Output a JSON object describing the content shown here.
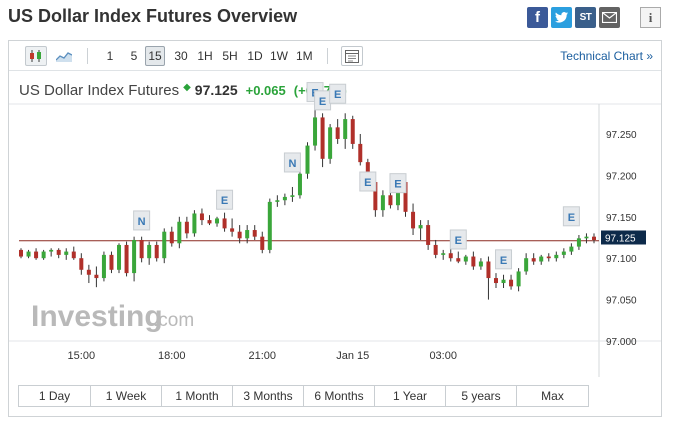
{
  "page": {
    "title": "US Dollar Index Futures Overview"
  },
  "share": {
    "facebook_icon": "f",
    "twitter_icon": "t",
    "stocktwits_icon": "ST",
    "mail_icon": "mail",
    "info_icon": "i"
  },
  "toolbar": {
    "chart_types": [
      "candlestick-icon",
      "area-chart-icon"
    ],
    "intervals": [
      "1",
      "5",
      "15",
      "30",
      "1H",
      "5H",
      "1D",
      "1W",
      "1M"
    ],
    "active_interval": "15",
    "settings_icon": "chart-settings-icon",
    "technical_link": "Technical Chart »"
  },
  "quote": {
    "name": "US Dollar Index Futures",
    "price": "97.125",
    "change": "+0.065",
    "change_pct": "(+0.07%)",
    "up_color": "#2aa33a"
  },
  "chart_data": {
    "type": "candlestick",
    "x_tick_labels": [
      "15:00",
      "18:00",
      "21:00",
      "Jan 15",
      "03:00"
    ],
    "y_tick_labels": [
      "97.250",
      "97.200",
      "97.150",
      "97.100",
      "97.050",
      "97.000"
    ],
    "ylim": [
      97.0,
      97.285
    ],
    "last_price_label": "97.125",
    "reference_line_value": 97.121,
    "colors": {
      "up": "#3aa63a",
      "down": "#b0302a",
      "reference": "#8b2a20",
      "last_price": "#0d2a4a"
    },
    "candles": [
      [
        97.11,
        97.112,
        97.1,
        97.102
      ],
      [
        97.102,
        97.11,
        97.1,
        97.108
      ],
      [
        97.108,
        97.112,
        97.098,
        97.1
      ],
      [
        97.1,
        97.11,
        97.098,
        97.108
      ],
      [
        97.108,
        97.112,
        97.102,
        97.11
      ],
      [
        97.11,
        97.112,
        97.1,
        97.104
      ],
      [
        97.104,
        97.112,
        97.098,
        97.108
      ],
      [
        97.108,
        97.114,
        97.098,
        97.1
      ],
      [
        97.1,
        97.106,
        97.08,
        97.086
      ],
      [
        97.086,
        97.092,
        97.07,
        97.08
      ],
      [
        97.08,
        97.09,
        97.065,
        97.076
      ],
      [
        97.076,
        97.108,
        97.072,
        97.104
      ],
      [
        97.104,
        97.108,
        97.082,
        97.086
      ],
      [
        97.086,
        97.118,
        97.082,
        97.116
      ],
      [
        97.116,
        97.12,
        97.078,
        97.082
      ],
      [
        97.082,
        97.126,
        97.072,
        97.122
      ],
      [
        97.122,
        97.126,
        97.095,
        97.1
      ],
      [
        97.1,
        97.12,
        97.092,
        97.116
      ],
      [
        97.116,
        97.12,
        97.096,
        97.1
      ],
      [
        97.1,
        97.136,
        97.094,
        97.132
      ],
      [
        97.132,
        97.138,
        97.114,
        97.118
      ],
      [
        97.118,
        97.15,
        97.112,
        97.144
      ],
      [
        97.144,
        97.15,
        97.124,
        97.13
      ],
      [
        97.13,
        97.158,
        97.126,
        97.154
      ],
      [
        97.154,
        97.16,
        97.14,
        97.146
      ],
      [
        97.146,
        97.152,
        97.14,
        97.142
      ],
      [
        97.142,
        97.15,
        97.138,
        97.148
      ],
      [
        97.148,
        97.155,
        97.132,
        97.136
      ],
      [
        97.136,
        97.148,
        97.126,
        97.132
      ],
      [
        97.132,
        97.14,
        97.118,
        97.124
      ],
      [
        97.124,
        97.14,
        97.118,
        97.134
      ],
      [
        97.134,
        97.14,
        97.122,
        97.126
      ],
      [
        97.126,
        97.132,
        97.106,
        97.11
      ],
      [
        97.11,
        97.172,
        97.106,
        97.168
      ],
      [
        97.168,
        97.176,
        97.162,
        97.17
      ],
      [
        97.17,
        97.178,
        97.164,
        97.174
      ],
      [
        97.174,
        97.186,
        97.168,
        97.176
      ],
      [
        97.176,
        97.206,
        97.172,
        97.202
      ],
      [
        97.202,
        97.24,
        97.196,
        97.236
      ],
      [
        97.236,
        97.28,
        97.23,
        97.27
      ],
      [
        97.27,
        97.275,
        97.21,
        97.22
      ],
      [
        97.22,
        97.262,
        97.214,
        97.258
      ],
      [
        97.258,
        97.268,
        97.238,
        97.244
      ],
      [
        97.244,
        97.275,
        97.232,
        97.268
      ],
      [
        97.268,
        97.272,
        97.232,
        97.238
      ],
      [
        97.238,
        97.25,
        97.212,
        97.216
      ],
      [
        97.216,
        97.22,
        97.188,
        97.192
      ],
      [
        97.192,
        97.2,
        97.15,
        97.158
      ],
      [
        97.158,
        97.182,
        97.15,
        97.176
      ],
      [
        97.176,
        97.18,
        97.16,
        97.164
      ],
      [
        97.164,
        97.196,
        97.158,
        97.192
      ],
      [
        97.192,
        97.196,
        97.15,
        97.156
      ],
      [
        97.156,
        97.166,
        97.128,
        97.136
      ],
      [
        97.136,
        97.146,
        97.122,
        97.14
      ],
      [
        97.14,
        97.146,
        97.11,
        97.116
      ],
      [
        97.116,
        97.122,
        97.1,
        97.104
      ],
      [
        97.104,
        97.11,
        97.098,
        97.106
      ],
      [
        97.106,
        97.112,
        97.096,
        97.1
      ],
      [
        97.1,
        97.108,
        97.094,
        97.096
      ],
      [
        97.096,
        97.104,
        97.092,
        97.102
      ],
      [
        97.102,
        97.108,
        97.086,
        97.09
      ],
      [
        97.09,
        97.1,
        97.086,
        97.096
      ],
      [
        97.096,
        97.102,
        97.05,
        97.076
      ],
      [
        97.076,
        97.082,
        97.064,
        97.07
      ],
      [
        97.07,
        97.08,
        97.064,
        97.074
      ],
      [
        97.074,
        97.08,
        97.062,
        97.066
      ],
      [
        97.066,
        97.088,
        97.06,
        97.084
      ],
      [
        97.084,
        97.106,
        97.08,
        97.1
      ],
      [
        97.1,
        97.106,
        97.092,
        97.096
      ],
      [
        97.096,
        97.104,
        97.092,
        97.102
      ],
      [
        97.102,
        97.106,
        97.096,
        97.1
      ],
      [
        97.1,
        97.108,
        97.096,
        97.104
      ],
      [
        97.104,
        97.112,
        97.1,
        97.108
      ],
      [
        97.108,
        97.118,
        97.104,
        97.114
      ],
      [
        97.114,
        97.128,
        97.11,
        97.124
      ],
      [
        97.124,
        97.13,
        97.118,
        97.126
      ],
      [
        97.126,
        97.13,
        97.118,
        97.122
      ]
    ],
    "event_markers": [
      {
        "label": "N",
        "candle": 16,
        "value": 97.145
      },
      {
        "label": "E",
        "candle": 27,
        "value": 97.17
      },
      {
        "label": "N",
        "candle": 36,
        "value": 97.215
      },
      {
        "label": "E",
        "candle": 39,
        "value": 97.3
      },
      {
        "label": "E",
        "candle": 40,
        "value": 97.29
      },
      {
        "label": "E",
        "candle": 42,
        "value": 97.298
      },
      {
        "label": "E",
        "candle": 46,
        "value": 97.192
      },
      {
        "label": "E",
        "candle": 50,
        "value": 97.19
      },
      {
        "label": "E",
        "candle": 58,
        "value": 97.122
      },
      {
        "label": "E",
        "candle": 64,
        "value": 97.098
      },
      {
        "label": "E",
        "candle": 73,
        "value": 97.15
      }
    ],
    "watermark": {
      "text": "Investing",
      "suffix": ".com"
    }
  },
  "ranges": [
    "1 Day",
    "1 Week",
    "1 Month",
    "3 Months",
    "6 Months",
    "1 Year",
    "5 years",
    "Max"
  ]
}
